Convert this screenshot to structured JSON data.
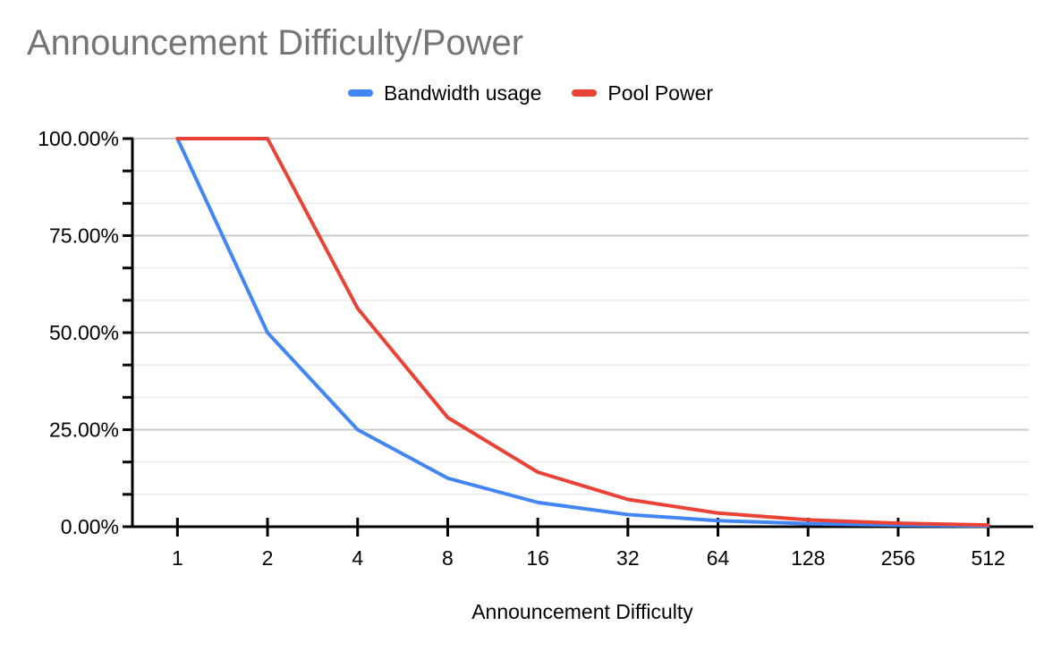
{
  "chart_data": {
    "type": "line",
    "title": "Announcement Difficulty/Power",
    "xlabel": "Announcement Difficulty",
    "ylabel": "",
    "categories": [
      "1",
      "2",
      "4",
      "8",
      "16",
      "32",
      "64",
      "128",
      "256",
      "512"
    ],
    "series": [
      {
        "name": "Bandwidth usage",
        "color": "#4285f4",
        "values": [
          100,
          50,
          25,
          12.5,
          6.25,
          3.125,
          1.5625,
          0.78125,
          0.390625,
          0.1953125
        ]
      },
      {
        "name": "Pool Power",
        "color": "#ea4335",
        "values": [
          100,
          100,
          56.25,
          28.13,
          14.06,
          7.03,
          3.52,
          1.76,
          0.88,
          0.44
        ]
      }
    ],
    "y_axis": {
      "min": 0,
      "max": 100,
      "major_step": 25,
      "minor_divisions": 3,
      "ticks": [
        {
          "value": 0,
          "label": "0.00%"
        },
        {
          "value": 25,
          "label": "25.00%"
        },
        {
          "value": 50,
          "label": "50.00%"
        },
        {
          "value": 75,
          "label": "75.00%"
        },
        {
          "value": 100,
          "label": "100.00%"
        }
      ]
    },
    "legend_position": "top",
    "grid": {
      "horizontal_major": true,
      "horizontal_minor": true,
      "vertical": false
    }
  },
  "colors": {
    "title_text": "#757575",
    "axis_text": "#000000",
    "axis_line": "#000000",
    "grid_major": "#cccccc",
    "grid_minor": "#ebebeb",
    "background": "#ffffff"
  }
}
